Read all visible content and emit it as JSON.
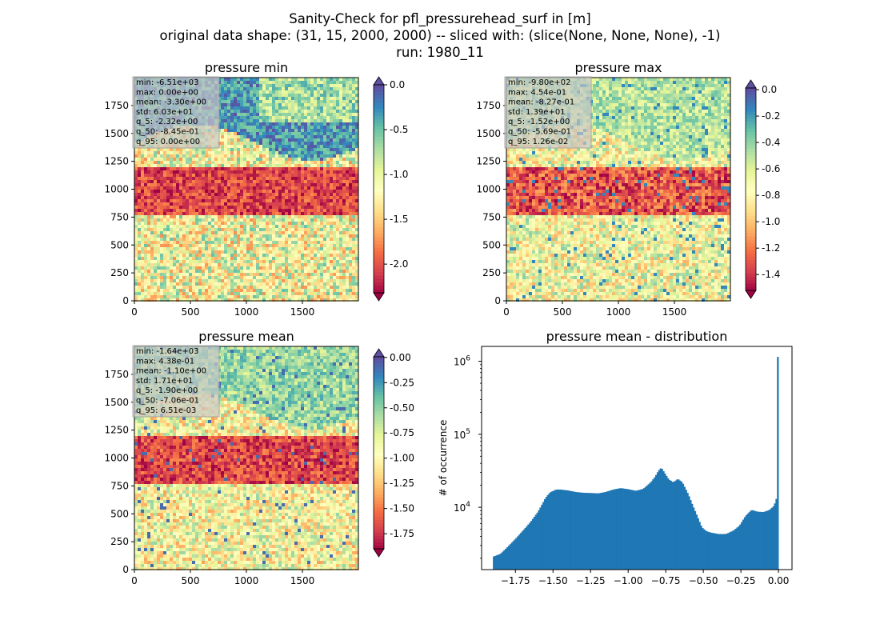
{
  "figure": {
    "title_lines": [
      "Sanity-Check for pfl_pressurehead_surf in [m]",
      "original data shape: (31, 15, 2000, 2000) -- sliced with: (slice(None, None, None), -1)",
      "run: 1980_11"
    ]
  },
  "chart_data": [
    {
      "type": "heatmap",
      "title": "pressure min",
      "x_ticks": [
        0,
        500,
        1000,
        1500
      ],
      "y_ticks": [
        0,
        250,
        500,
        750,
        1000,
        1250,
        1500,
        1750
      ],
      "xlim": [
        0,
        2000
      ],
      "ylim": [
        0,
        2000
      ],
      "colormap": "Spectral",
      "colorbar": {
        "min": -2.32,
        "max": 0.0,
        "ticks": [
          "0.0",
          "-0.5",
          "-1.0",
          "-1.5",
          "-2.0"
        ],
        "tick_values": [
          0.0,
          -0.5,
          -1.0,
          -1.5,
          -2.0
        ],
        "extend": "both",
        "extend_max_color": "#5e4fa2"
      },
      "stats": [
        "min: -6.51e+03",
        "max: 0.00e+00",
        "mean: -3.30e+00",
        "std: 6.03e+01",
        "q_5: -2.32e+00",
        "q_50: -8.45e-01",
        "q_95: 0.00e+00"
      ]
    },
    {
      "type": "heatmap",
      "title": "pressure max",
      "x_ticks": [
        0,
        500,
        1000,
        1500
      ],
      "y_ticks": [
        0,
        250,
        500,
        750,
        1000,
        1250,
        1500,
        1750
      ],
      "xlim": [
        0,
        2000
      ],
      "ylim": [
        0,
        2000
      ],
      "colormap": "Spectral",
      "colorbar": {
        "min": -1.52,
        "max": 0.0126,
        "ticks": [
          "0.0",
          "-0.2",
          "-0.4",
          "-0.6",
          "-0.8",
          "-1.0",
          "-1.2",
          "-1.4"
        ],
        "tick_values": [
          0.0,
          -0.2,
          -0.4,
          -0.6,
          -0.8,
          -1.0,
          -1.2,
          -1.4
        ],
        "extend": "both",
        "extend_max_color": "#5e4fa2"
      },
      "stats": [
        "min: -9.80e+02",
        "max: 4.54e-01",
        "mean: -8.27e-01",
        "std: 1.39e+01",
        "q_5: -1.52e+00",
        "q_50: -5.69e-01",
        "q_95: 1.26e-02"
      ]
    },
    {
      "type": "heatmap",
      "title": "pressure mean",
      "x_ticks": [
        0,
        500,
        1000,
        1500
      ],
      "y_ticks": [
        0,
        250,
        500,
        750,
        1000,
        1250,
        1500,
        1750
      ],
      "xlim": [
        0,
        2000
      ],
      "ylim": [
        0,
        2000
      ],
      "colormap": "Spectral",
      "colorbar": {
        "min": -1.9,
        "max": 0.0065,
        "ticks": [
          "0.00",
          "-0.25",
          "-0.50",
          "-0.75",
          "-1.00",
          "-1.25",
          "-1.50",
          "-1.75"
        ],
        "tick_values": [
          0.0,
          -0.25,
          -0.5,
          -0.75,
          -1.0,
          -1.25,
          -1.5,
          -1.75
        ],
        "extend": "both",
        "extend_max_color": "#5e4fa2"
      },
      "stats": [
        "min: -1.64e+03",
        "max: 4.38e-01",
        "mean: -1.10e+00",
        "std: 1.71e+01",
        "q_5: -1.90e+00",
        "q_50: -7.06e-01",
        "q_95: 6.51e-03"
      ]
    },
    {
      "type": "bar",
      "title": "pressure mean - distribution",
      "ylabel": "# of occurrence",
      "xlabel": "",
      "y_scale": "log",
      "x_ticks": [
        "−1.75",
        "−1.50",
        "−1.25",
        "−1.00",
        "−0.75",
        "−0.50",
        "−0.25",
        "0.00"
      ],
      "x_tick_values": [
        -1.75,
        -1.5,
        -1.25,
        -1.0,
        -0.75,
        -0.5,
        -0.25,
        0.0
      ],
      "y_ticks": [
        {
          "value": 10000,
          "base": "10",
          "exp": "4"
        },
        {
          "value": 100000,
          "base": "10",
          "exp": "5"
        },
        {
          "value": 1000000,
          "base": "10",
          "exp": "6"
        }
      ],
      "xlim": [
        -1.975,
        0.09
      ],
      "ylim": [
        1400,
        1600000
      ],
      "bar_color": "#1f77b4",
      "bin_range": [
        -1.9,
        0.0
      ],
      "profile": [
        [
          -1.9,
          2100
        ],
        [
          -1.85,
          2300
        ],
        [
          -1.8,
          2900
        ],
        [
          -1.75,
          3700
        ],
        [
          -1.7,
          4800
        ],
        [
          -1.65,
          6300
        ],
        [
          -1.6,
          8700
        ],
        [
          -1.55,
          13500
        ],
        [
          -1.52,
          16000
        ],
        [
          -1.48,
          17500
        ],
        [
          -1.45,
          17500
        ],
        [
          -1.4,
          17000
        ],
        [
          -1.35,
          16200
        ],
        [
          -1.3,
          15800
        ],
        [
          -1.25,
          15700
        ],
        [
          -1.2,
          15500
        ],
        [
          -1.15,
          16200
        ],
        [
          -1.1,
          17500
        ],
        [
          -1.05,
          18300
        ],
        [
          -1.0,
          17700
        ],
        [
          -0.95,
          16800
        ],
        [
          -0.9,
          17900
        ],
        [
          -0.85,
          22000
        ],
        [
          -0.82,
          26500
        ],
        [
          -0.8,
          31500
        ],
        [
          -0.78,
          35000
        ],
        [
          -0.76,
          30000
        ],
        [
          -0.73,
          24000
        ],
        [
          -0.7,
          22000
        ],
        [
          -0.67,
          24500
        ],
        [
          -0.64,
          22000
        ],
        [
          -0.6,
          15000
        ],
        [
          -0.57,
          10500
        ],
        [
          -0.54,
          7500
        ],
        [
          -0.51,
          5300
        ],
        [
          -0.48,
          4700
        ],
        [
          -0.45,
          4500
        ],
        [
          -0.4,
          4300
        ],
        [
          -0.35,
          4300
        ],
        [
          -0.3,
          4800
        ],
        [
          -0.26,
          5600
        ],
        [
          -0.22,
          7600
        ],
        [
          -0.18,
          9200
        ],
        [
          -0.14,
          8700
        ],
        [
          -0.1,
          8600
        ],
        [
          -0.06,
          9200
        ],
        [
          -0.03,
          10500
        ],
        [
          -0.01,
          14000
        ],
        [
          -0.004,
          20000
        ],
        [
          0.0,
          1150000
        ]
      ]
    }
  ]
}
